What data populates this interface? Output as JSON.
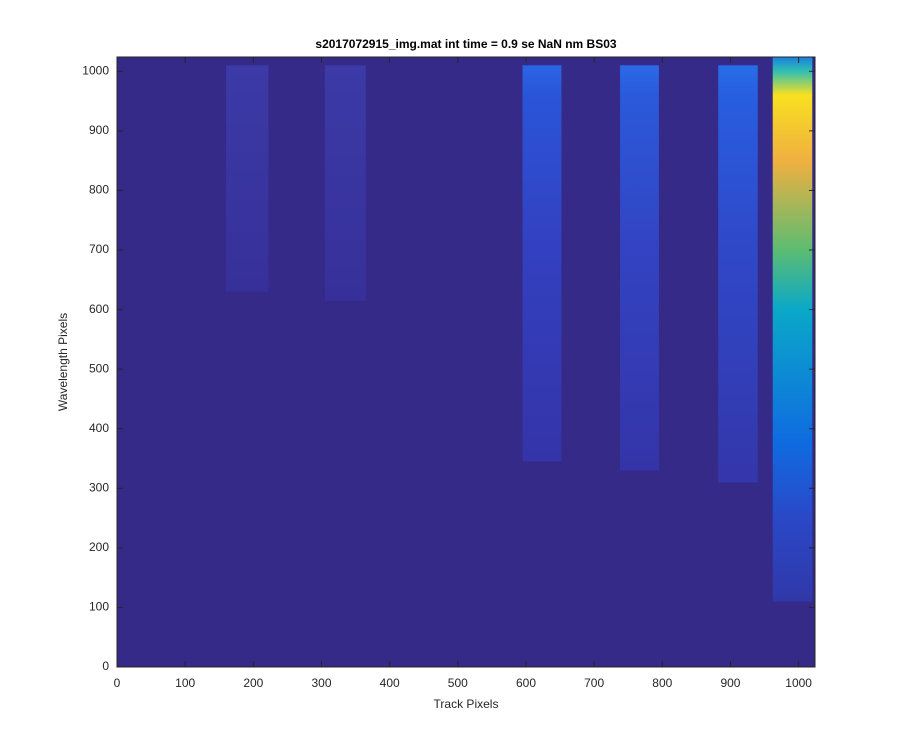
{
  "chart_data": {
    "type": "heatmap",
    "title": "s2017072915_img.mat int time = 0.9 se  NaN nm BS03",
    "x_label": "Track Pixels",
    "y_label": "Wavelength Pixels",
    "xlim": [
      0,
      1024
    ],
    "ylim": [
      0,
      1024
    ],
    "xticks": [
      0,
      100,
      200,
      300,
      400,
      500,
      600,
      700,
      800,
      900,
      1000
    ],
    "yticks": [
      0,
      100,
      200,
      300,
      400,
      500,
      600,
      700,
      800,
      900,
      1000
    ],
    "background": "#352a87",
    "bands": [
      {
        "x": [
          160,
          222
        ],
        "y": [
          630,
          1010
        ],
        "stops": [
          {
            "y": 630,
            "color": "#37309a"
          },
          {
            "y": 1010,
            "color": "#3b3aa6"
          }
        ]
      },
      {
        "x": [
          305,
          365
        ],
        "y": [
          615,
          1010
        ],
        "stops": [
          {
            "y": 615,
            "color": "#37309a"
          },
          {
            "y": 1010,
            "color": "#3b3aa6"
          }
        ]
      },
      {
        "x": [
          595,
          652
        ],
        "y": [
          345,
          1010
        ],
        "stops": [
          {
            "y": 345,
            "color": "#3434a8"
          },
          {
            "y": 700,
            "color": "#3340c0"
          },
          {
            "y": 960,
            "color": "#2a55d8"
          },
          {
            "y": 1010,
            "color": "#2a66e6"
          }
        ]
      },
      {
        "x": [
          738,
          795
        ],
        "y": [
          330,
          1010
        ],
        "stops": [
          {
            "y": 330,
            "color": "#3434a8"
          },
          {
            "y": 700,
            "color": "#3343c2"
          },
          {
            "y": 960,
            "color": "#2a5ada"
          },
          {
            "y": 1010,
            "color": "#2a6ae8"
          }
        ]
      },
      {
        "x": [
          882,
          940
        ],
        "y": [
          310,
          1010
        ],
        "stops": [
          {
            "y": 310,
            "color": "#3436aa"
          },
          {
            "y": 700,
            "color": "#2f48c8"
          },
          {
            "y": 960,
            "color": "#285ee0"
          },
          {
            "y": 1010,
            "color": "#266ee8"
          }
        ]
      },
      {
        "x": [
          962,
          1020
        ],
        "y": [
          110,
          1024
        ],
        "stops": [
          {
            "y": 110,
            "color": "#3038a8"
          },
          {
            "y": 250,
            "color": "#2a48c8"
          },
          {
            "y": 380,
            "color": "#0f6ce0"
          },
          {
            "y": 600,
            "color": "#0aa8c8"
          },
          {
            "y": 700,
            "color": "#5cbc72"
          },
          {
            "y": 850,
            "color": "#f0b040"
          },
          {
            "y": 960,
            "color": "#f8e020"
          },
          {
            "y": 1000,
            "color": "#30c0b0"
          },
          {
            "y": 1024,
            "color": "#1a80e0"
          }
        ]
      }
    ]
  }
}
